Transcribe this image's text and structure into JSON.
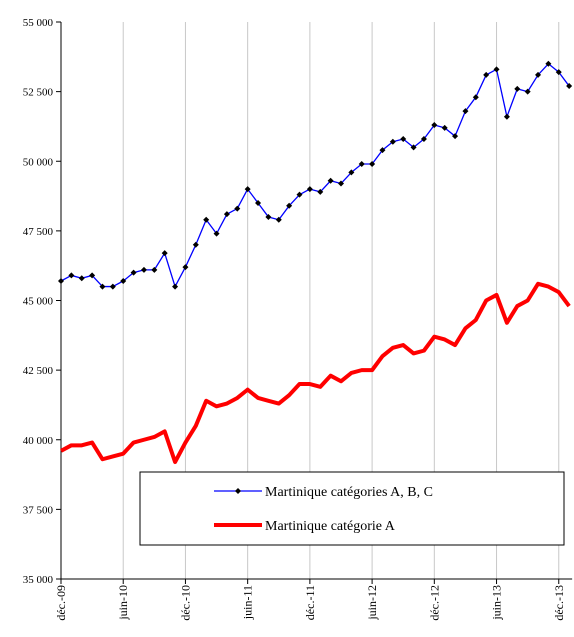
{
  "chart_data": {
    "type": "line",
    "categories": [
      "déc.-09",
      null,
      null,
      null,
      null,
      null,
      "juin-10",
      null,
      null,
      null,
      null,
      null,
      "déc.-10",
      null,
      null,
      null,
      null,
      null,
      "juin-11",
      null,
      null,
      null,
      null,
      null,
      "déc.-11",
      null,
      null,
      null,
      null,
      null,
      "juin-12",
      null,
      null,
      null,
      null,
      null,
      "déc.-12",
      null,
      null,
      null,
      null,
      null,
      "juin-13",
      null,
      null,
      null,
      null,
      null,
      "déc.-13",
      null
    ],
    "series": [
      {
        "name": "Martinique catégories A, B, C",
        "color": "#0000ff",
        "marker": true,
        "values": [
          45700,
          45900,
          45800,
          45900,
          45500,
          45500,
          45700,
          46000,
          46100,
          46100,
          46700,
          45500,
          46200,
          47000,
          47900,
          47400,
          48100,
          48300,
          49000,
          48500,
          48000,
          47900,
          48400,
          48800,
          49000,
          48900,
          49300,
          49200,
          49600,
          49900,
          49900,
          50400,
          50700,
          50800,
          50500,
          50800,
          51300,
          51200,
          50900,
          51800,
          52300,
          53100,
          53300,
          51600,
          52600,
          52500,
          53100,
          53500,
          53200,
          52700
        ]
      },
      {
        "name": "Martinique catégorie A",
        "color": "#ff0000",
        "marker": false,
        "values": [
          39600,
          39800,
          39800,
          39900,
          39300,
          39400,
          39500,
          39900,
          40000,
          40100,
          40300,
          39200,
          39900,
          40500,
          41400,
          41200,
          41300,
          41500,
          41800,
          41500,
          41400,
          41300,
          41600,
          42000,
          42000,
          41900,
          42300,
          42100,
          42400,
          42500,
          42500,
          43000,
          43300,
          43400,
          43100,
          43200,
          43700,
          43600,
          43400,
          44000,
          44300,
          45000,
          45200,
          44200,
          44800,
          45000,
          45600,
          45500,
          45300,
          44800
        ]
      }
    ],
    "ylim": [
      35000,
      55000
    ],
    "yticks": [
      {
        "value": 35000,
        "label": "35 000"
      },
      {
        "value": 37500,
        "label": "37 500"
      },
      {
        "value": 40000,
        "label": "40 000"
      },
      {
        "value": 42500,
        "label": "42 500"
      },
      {
        "value": 45000,
        "label": "45 000"
      },
      {
        "value": 47500,
        "label": "47 500"
      },
      {
        "value": 50000,
        "label": "50 000"
      },
      {
        "value": 52500,
        "label": "52 500"
      },
      {
        "value": 55000,
        "label": "55 000"
      }
    ],
    "grid": "x"
  }
}
